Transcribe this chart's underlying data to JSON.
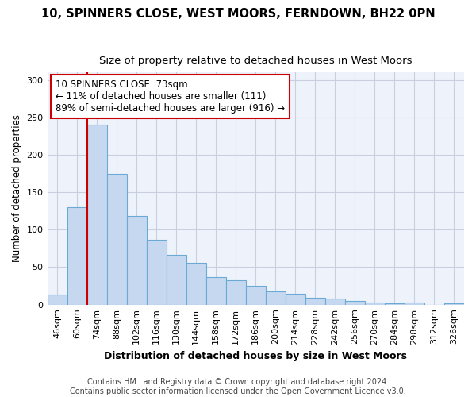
{
  "title": "10, SPINNERS CLOSE, WEST MOORS, FERNDOWN, BH22 0PN",
  "subtitle": "Size of property relative to detached houses in West Moors",
  "xlabel": "Distribution of detached houses by size in West Moors",
  "ylabel": "Number of detached properties",
  "categories": [
    "46sqm",
    "60sqm",
    "74sqm",
    "88sqm",
    "102sqm",
    "116sqm",
    "130sqm",
    "144sqm",
    "158sqm",
    "172sqm",
    "186sqm",
    "200sqm",
    "214sqm",
    "228sqm",
    "242sqm",
    "256sqm",
    "270sqm",
    "284sqm",
    "298sqm",
    "312sqm",
    "326sqm"
  ],
  "values": [
    13,
    130,
    240,
    175,
    118,
    87,
    66,
    56,
    37,
    32,
    25,
    18,
    14,
    9,
    8,
    5,
    3,
    2,
    3,
    0,
    2
  ],
  "bar_color": "#c5d8f0",
  "bar_edge_color": "#6aaad4",
  "vline_x_index": 2,
  "vline_color": "#cc0000",
  "annotation_text": "10 SPINNERS CLOSE: 73sqm\n← 11% of detached houses are smaller (111)\n89% of semi-detached houses are larger (916) →",
  "annotation_box_color": "#ffffff",
  "annotation_box_edge_color": "#cc0000",
  "ylim": [
    0,
    310
  ],
  "yticks": [
    0,
    50,
    100,
    150,
    200,
    250,
    300
  ],
  "grid_color": "#c8d0e0",
  "background_color": "#ffffff",
  "plot_bg_color": "#eef2fb",
  "footer_text": "Contains HM Land Registry data © Crown copyright and database right 2024.\nContains public sector information licensed under the Open Government Licence v3.0.",
  "title_fontsize": 10.5,
  "subtitle_fontsize": 9.5,
  "xlabel_fontsize": 9,
  "ylabel_fontsize": 8.5,
  "tick_fontsize": 8,
  "annotation_fontsize": 8.5,
  "footer_fontsize": 7
}
